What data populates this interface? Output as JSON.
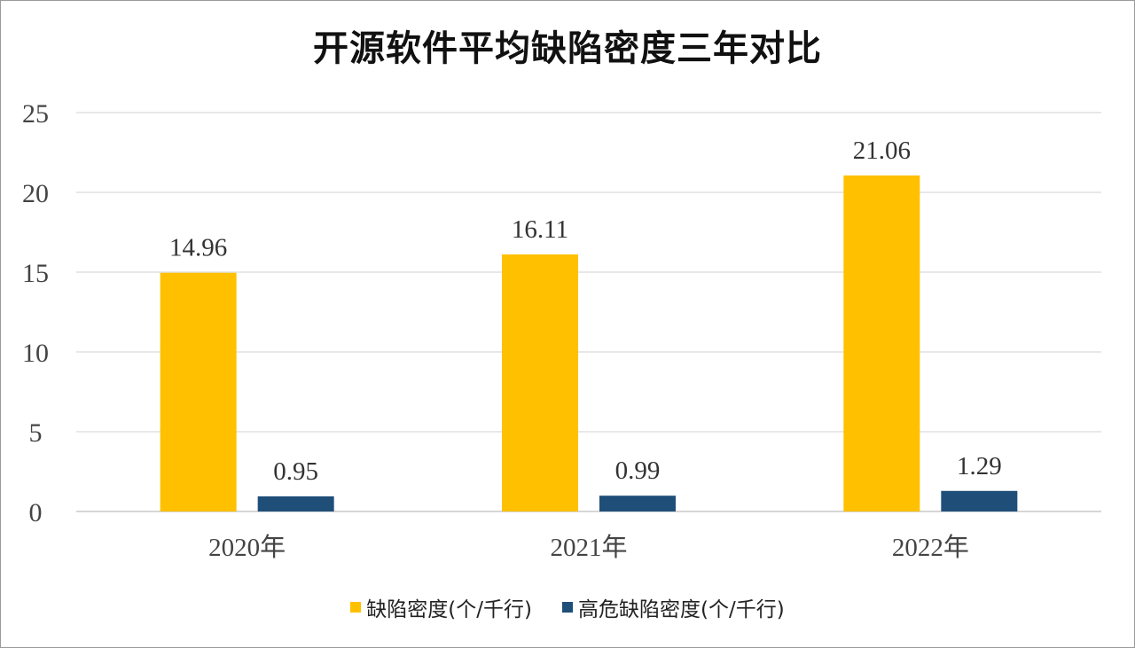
{
  "chart_data": {
    "type": "bar",
    "title": "开源软件平均缺陷密度三年对比",
    "categories": [
      "2020年",
      "2021年",
      "2022年"
    ],
    "series": [
      {
        "name": "缺陷密度(个/千行)",
        "values": [
          14.96,
          16.11,
          21.06
        ],
        "color": "#FFC000",
        "labels": [
          "14.96",
          "16.11",
          "21.06"
        ]
      },
      {
        "name": "高危缺陷密度(个/千行)",
        "values": [
          0.95,
          0.99,
          1.29
        ],
        "color": "#1F4E79",
        "labels": [
          "0.95",
          "0.99",
          "1.29"
        ]
      }
    ],
    "ylim": [
      0,
      25
    ],
    "yticks": [
      "0",
      "5",
      "10",
      "15",
      "20",
      "25"
    ],
    "grid": true,
    "legend": "bottom"
  }
}
